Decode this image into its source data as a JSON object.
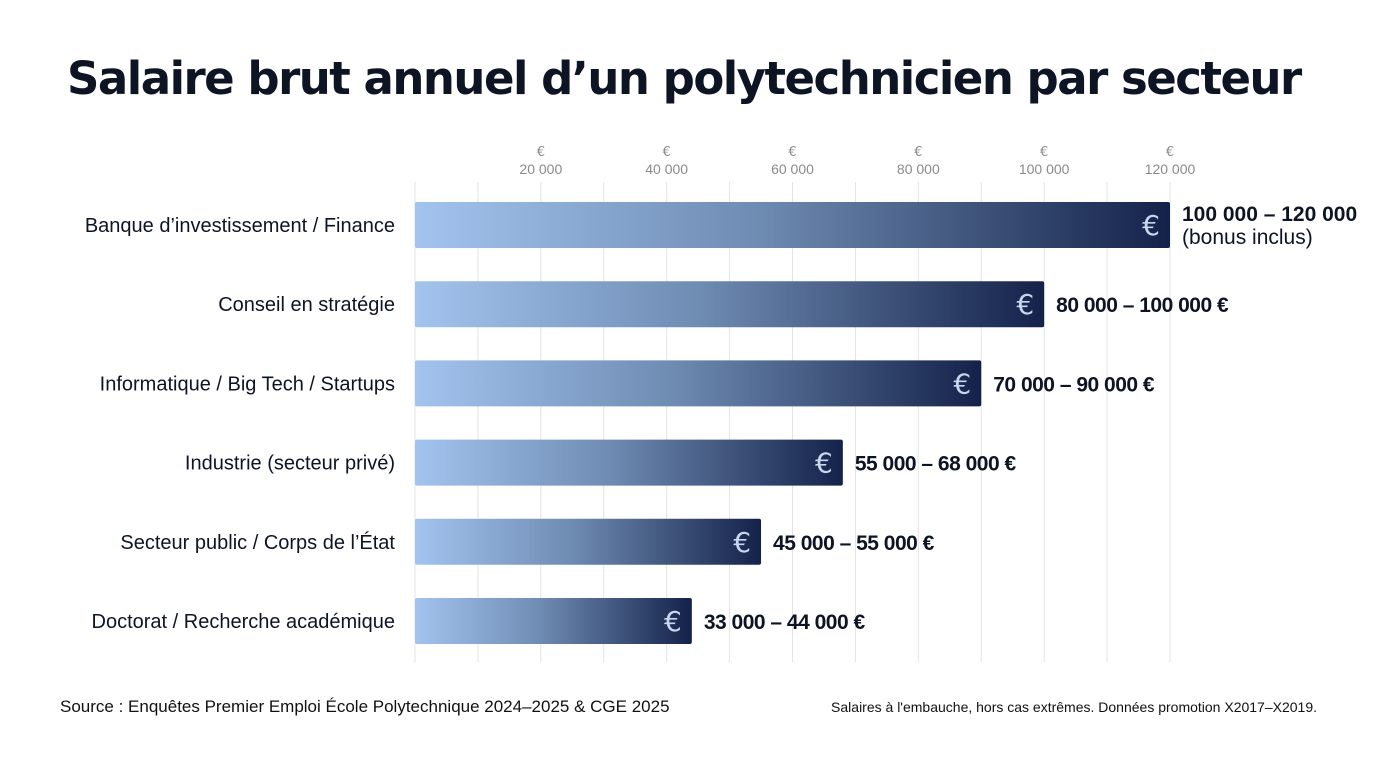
{
  "chart_data": {
    "type": "bar",
    "orientation": "horizontal",
    "title": "Salaire brut annuel d’un polytechnicien par secteur",
    "categories": [
      "Banque d’investissement / Finance",
      "Conseil en stratégie",
      "Informatique / Big Tech / Startups",
      "Industrie (secteur privé)",
      "Secteur public / Corps de l’État",
      "Doctorat / Recherche académique"
    ],
    "ranges": [
      [
        100000,
        120000
      ],
      [
        80000,
        100000
      ],
      [
        70000,
        90000
      ],
      [
        55000,
        68000
      ],
      [
        45000,
        55000
      ],
      [
        33000,
        44000
      ]
    ],
    "values": [
      120000,
      100000,
      90000,
      68000,
      55000,
      44000
    ],
    "data_labels": [
      "100 000 – 120 000",
      "80 000 – 100 000 €",
      "70 000 – 90 000 €",
      "55 000 – 68 000 €",
      "45 000 – 55 000 €",
      "33 000 – 44 000 €"
    ],
    "data_label_extra": [
      "(bonus inclus)",
      "",
      "",
      "",
      "",
      ""
    ],
    "bar_icon": "€",
    "x_ticks": [
      20000,
      40000,
      60000,
      80000,
      100000,
      120000
    ],
    "x_tick_labels": [
      "20 000",
      "40 000",
      "60 000",
      "80 000",
      "100 000",
      "120 000"
    ],
    "x_tick_unit": "€",
    "xlim": [
      0,
      120000
    ],
    "grid": true,
    "grid_step": 10000,
    "axis_position": "top",
    "colors": {
      "bar_start": "#a3c4ef",
      "bar_end": "#14224a",
      "text": "#0d1424",
      "tick": "#8a8a8a",
      "grid": "#e3e3e3"
    }
  },
  "footer": {
    "source": "Source : Enquêtes Premier Emploi École Polytechnique 2024–2025 & CGE 2025",
    "note": "Salaires à l'embauche, hors cas extrêmes. Données promotion X2017–X2019."
  }
}
